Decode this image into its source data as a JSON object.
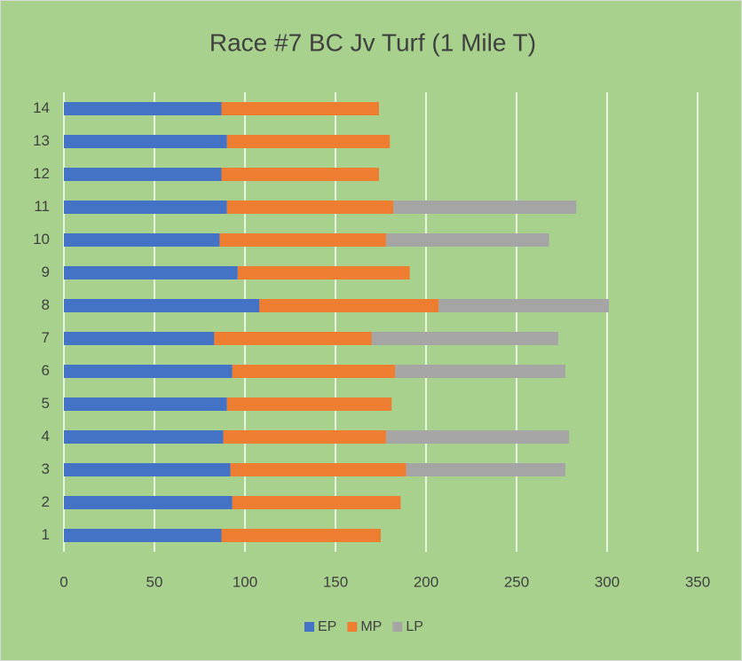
{
  "chart_data": {
    "type": "stacked_barh",
    "title": "Race #7 BC Jv Turf (1 Mile T)",
    "categories": [
      "1",
      "2",
      "3",
      "4",
      "5",
      "6",
      "7",
      "8",
      "9",
      "10",
      "11",
      "12",
      "13",
      "14"
    ],
    "series": [
      {
        "name": "EP",
        "color": "#4472c4",
        "values": [
          87,
          93,
          92,
          88,
          90,
          93,
          83,
          108,
          96,
          86,
          90,
          87,
          90,
          87
        ]
      },
      {
        "name": "MP",
        "color": "#ed7d31",
        "values": [
          88,
          93,
          97,
          90,
          91,
          90,
          87,
          99,
          95,
          92,
          92,
          87,
          90,
          87
        ]
      },
      {
        "name": "LP",
        "color": "#a5a5a5",
        "values": [
          null,
          null,
          88,
          101,
          null,
          94,
          103,
          94,
          null,
          90,
          101,
          null,
          null,
          null
        ]
      }
    ],
    "xlim": [
      0,
      350
    ],
    "xticks": [
      0,
      50,
      100,
      150,
      200,
      250,
      300,
      350
    ],
    "grid": true,
    "legend": "bottom"
  }
}
